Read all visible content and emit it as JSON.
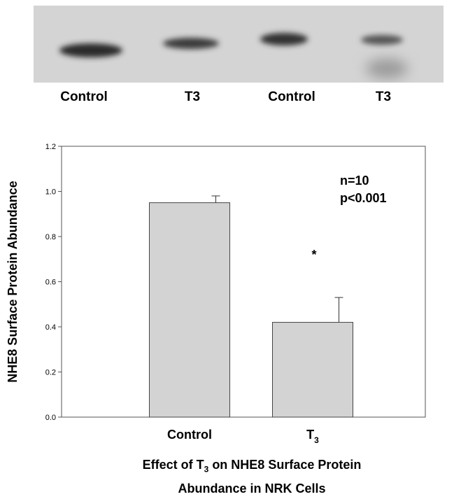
{
  "blot": {
    "lane_labels": [
      "Control",
      "T3",
      "Control",
      "T3"
    ]
  },
  "chart_data": {
    "type": "bar",
    "categories": [
      "Control",
      "T3"
    ],
    "values": [
      0.95,
      0.42
    ],
    "error": [
      0.03,
      0.11
    ],
    "ylabel": "NHE8 Surface Protein Abundance",
    "xlabel_parts": [
      "Effect of T",
      "3",
      " on NHE8 Surface Protein",
      "Abundance in NRK Cells"
    ],
    "ylim": [
      0,
      1.2
    ],
    "yticks": [
      "0.0",
      "0.2",
      "0.4",
      "0.6",
      "0.8",
      "1.0",
      "1.2"
    ],
    "annotations": [
      "n=10",
      "p<0.001"
    ],
    "significance_marker": "*",
    "bar_color": "#d3d3d3",
    "grid": false
  }
}
